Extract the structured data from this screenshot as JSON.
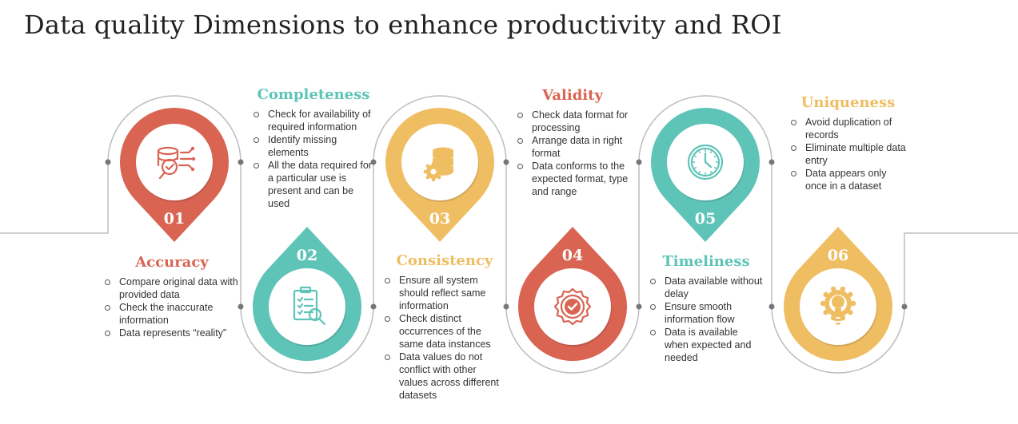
{
  "title": "Data quality Dimensions to enhance productivity and ROI",
  "colors": {
    "red": "#D96452",
    "teal": "#5FC4B8",
    "yellow": "#EFBE63",
    "line": "#bdbdbd",
    "text": "#333333"
  },
  "dimensions": [
    {
      "number": "01",
      "heading": "Accuracy",
      "color": "red",
      "icon": "database-check-icon",
      "points": [
        "Compare original data with provided data",
        "Check the inaccurate information",
        "Data represents “reality”"
      ]
    },
    {
      "number": "02",
      "heading": "Completeness",
      "color": "teal",
      "icon": "clipboard-search-icon",
      "points": [
        "Check for availability of required information",
        "Identify missing elements",
        "All the data required for a particular use is present and can be used"
      ]
    },
    {
      "number": "03",
      "heading": "Consistency",
      "color": "yellow",
      "icon": "database-gear-icon",
      "points": [
        "Ensure all system should reflect same information",
        "Check distinct occurrences of the same data instances",
        "Data values do not conflict with other values across different datasets"
      ]
    },
    {
      "number": "04",
      "heading": "Validity",
      "color": "red",
      "icon": "badge-check-icon",
      "points": [
        "Check data format for processing",
        "Arrange data in right format",
        "Data conforms to the expected format, type and range"
      ]
    },
    {
      "number": "05",
      "heading": "Timeliness",
      "color": "teal",
      "icon": "clock-icon",
      "points": [
        "Data available without delay",
        "Ensure smooth information flow",
        "Data is available when expected and needed"
      ]
    },
    {
      "number": "06",
      "heading": "Uniqueness",
      "color": "yellow",
      "icon": "lightbulb-gear-icon",
      "points": [
        "Avoid duplication of records",
        "Eliminate multiple data entry",
        "Data appears only once in a dataset"
      ]
    }
  ]
}
